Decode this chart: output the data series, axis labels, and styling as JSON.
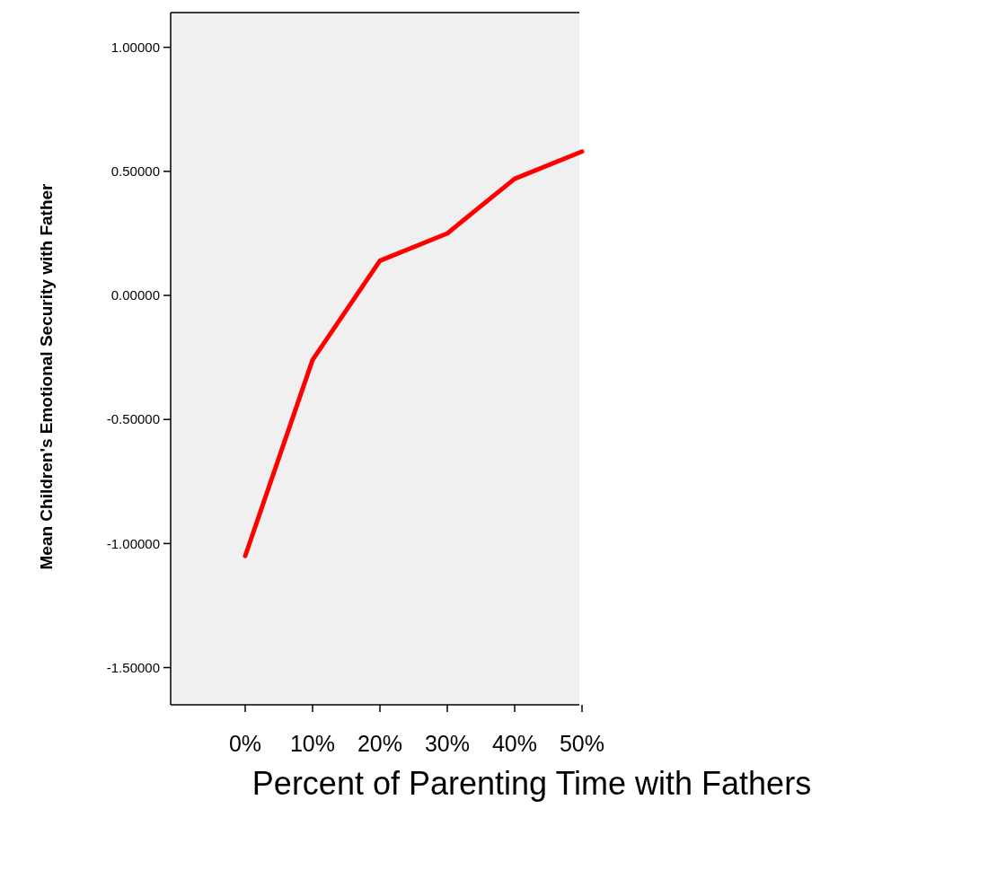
{
  "chart_data": {
    "type": "line",
    "xlabel": "Percent of Parenting Time with Fathers",
    "ylabel": "Mean Children's Emotional Security with Father",
    "categories": [
      "0%",
      "10%",
      "20%",
      "30%",
      "40%",
      "50%"
    ],
    "series": [
      {
        "color": "#ff0000",
        "values": [
          -1.05,
          -0.26,
          0.14,
          0.25,
          0.47,
          0.58
        ]
      }
    ],
    "ylim": [
      -1.65,
      1.14
    ],
    "yticks": [
      {
        "value": -1.5,
        "label": "-1.50000"
      },
      {
        "value": -1,
        "label": "-1.00000"
      },
      {
        "value": -0.5,
        "label": "-0.50000"
      },
      {
        "value": 0,
        "label": "0.00000"
      },
      {
        "value": 0.5,
        "label": "0.50000"
      },
      {
        "value": 1,
        "label": "1.00000"
      }
    ],
    "grid": false,
    "marker": "none",
    "line_style": "solid"
  }
}
